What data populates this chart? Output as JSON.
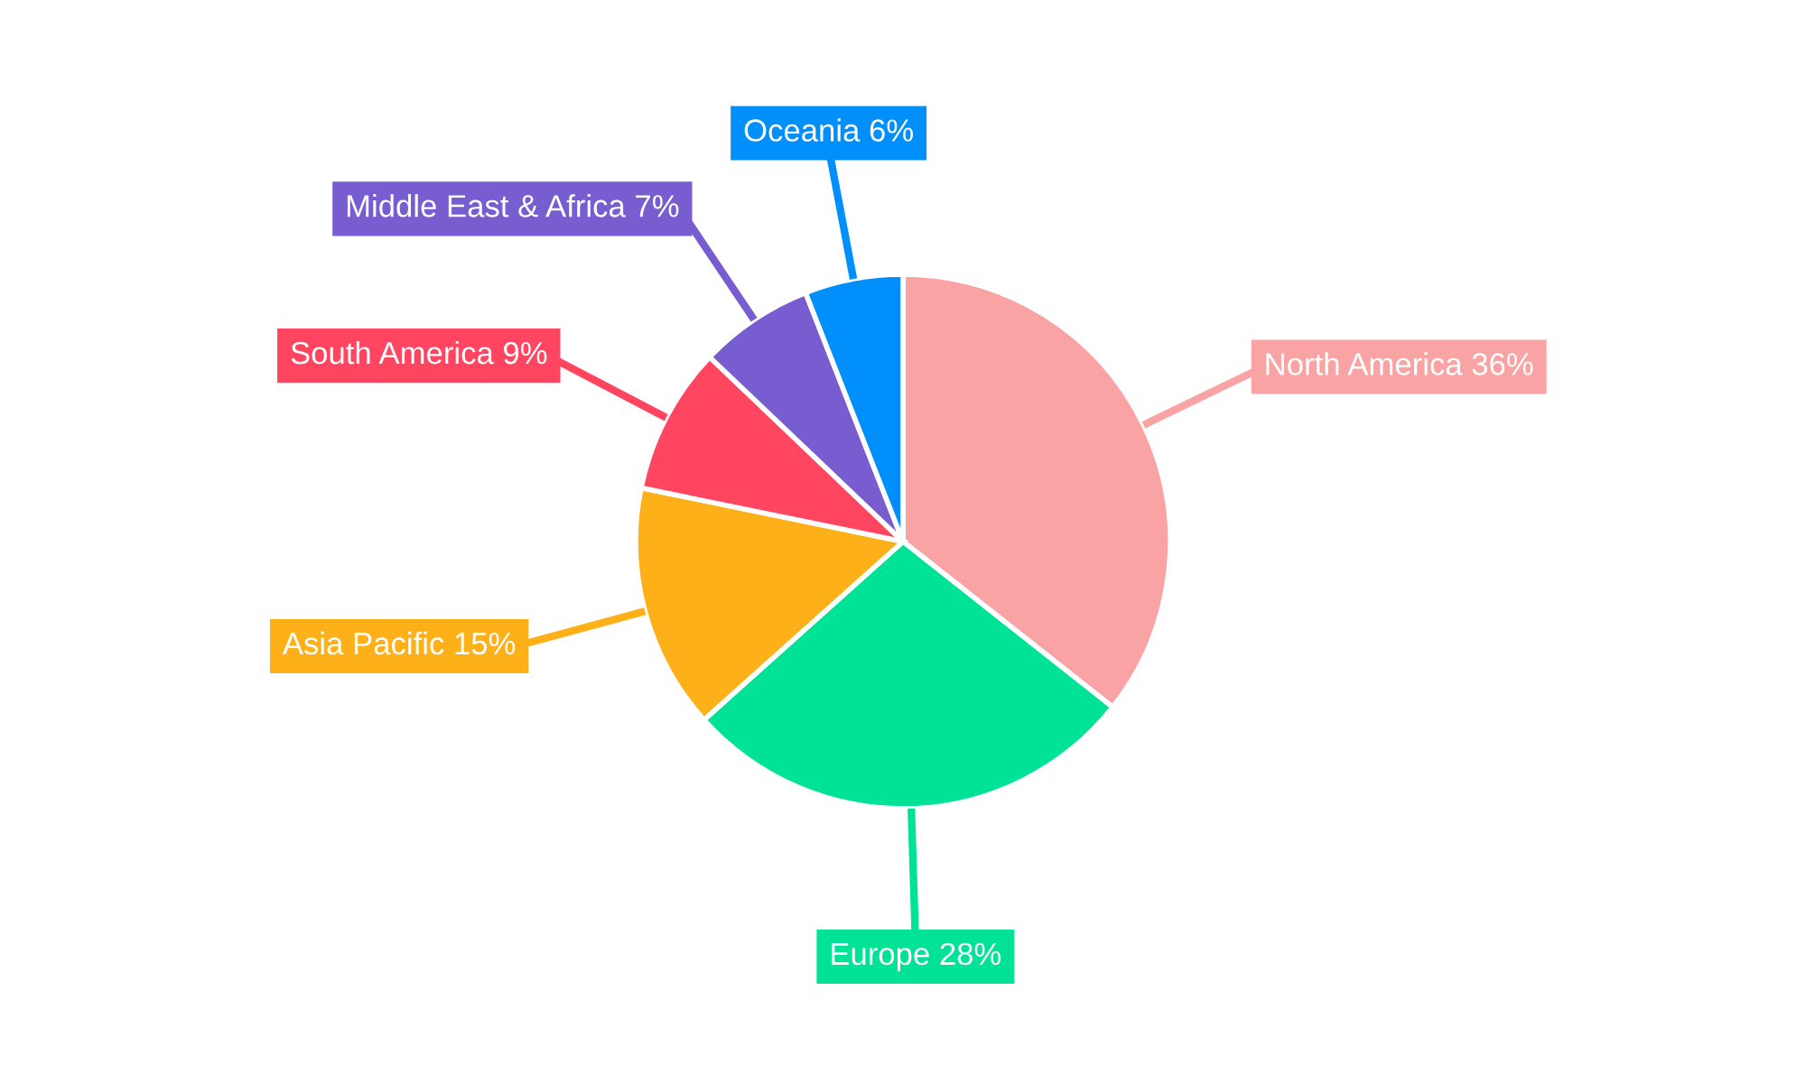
{
  "chart_data": {
    "type": "pie",
    "categories": [
      "North America",
      "Europe",
      "Asia Pacific",
      "South America",
      "Middle East & Africa",
      "Oceania"
    ],
    "values": [
      36,
      28,
      15,
      9,
      7,
      6
    ],
    "value_labels": [
      "36%",
      "28%",
      "15%",
      "9%",
      "7%",
      "6%"
    ],
    "colors": [
      "#f9a3a4",
      "#00e396",
      "#feb019",
      "#ff4560",
      "#775dd0",
      "#008ffb"
    ],
    "legend": false
  }
}
